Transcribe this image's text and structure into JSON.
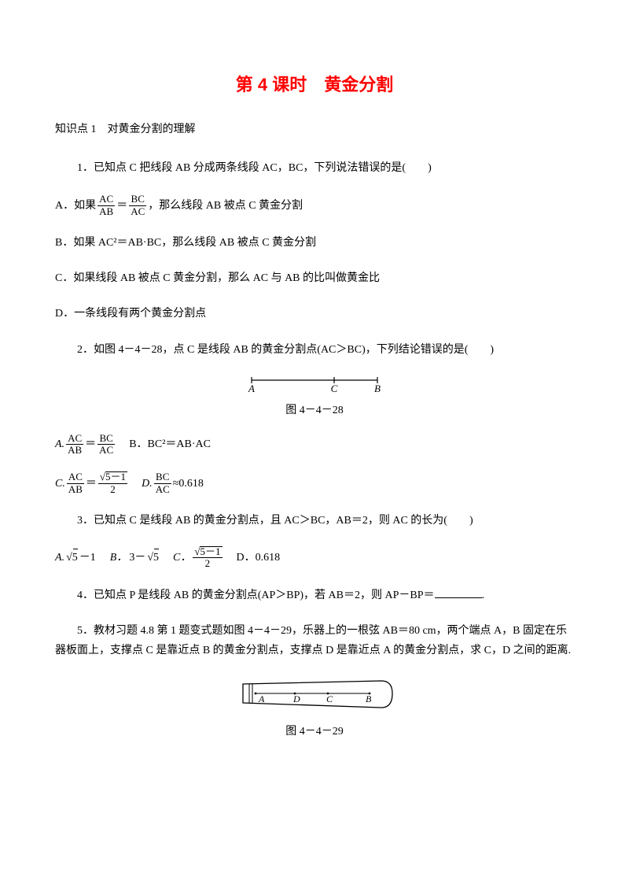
{
  "title": "第 4 课时　黄金分割",
  "section1": "知识点 1　对黄金分割的理解",
  "q1": {
    "stem": "1．已知点 C 把线段 AB 分成两条线段 AC，BC，下列说法错误的是(　　)",
    "optA_prefix": "A．如果",
    "optA_suffix": "，那么线段 AB 被点 C 黄金分割",
    "fracA1_num": "AC",
    "fracA1_den": "AB",
    "fracA2_num": "BC",
    "fracA2_den": "AC",
    "optB": "B．如果 AC²＝AB·BC，那么线段 AB 被点 C 黄金分割",
    "optC": "C．如果线段 AB 被点 C 黄金分割，那么 AC 与 AB 的比叫做黄金比",
    "optD": "D．一条线段有两个黄金分割点"
  },
  "q2": {
    "stem": "2．如图 4－4－28，点 C 是线段 AB 的黄金分割点(AC＞BC)，下列结论错误的是(　　)",
    "fig_caption": "图 4－4－28",
    "fig_labels": {
      "A": "A",
      "C": "C",
      "B": "B"
    },
    "optA_prefix": "A.",
    "fracA1_num": "AC",
    "fracA1_den": "AB",
    "fracA2_num": "BC",
    "fracA2_den": "AC",
    "optB": "B．BC²＝AB·AC",
    "optC_prefix": "C.",
    "fracC1_num": "AC",
    "fracC1_den": "AB",
    "fracC2_num": "√5－1",
    "fracC2_den": "2",
    "optD_prefix": "D.",
    "fracD_num": "BC",
    "fracD_den": "AC",
    "optD_suffix": "≈0.618"
  },
  "q3": {
    "stem": "3．已知点 C 是线段 AB 的黄金分割点，且 AC＞BC，AB＝2，则 AC 的长为(　　)",
    "optA": "A. √5－1",
    "optB": "B．3－√5",
    "optC_prefix": "C．",
    "fracC_num": "√5－1",
    "fracC_den": "2",
    "optD": "D．0.618"
  },
  "q4": {
    "stem_pre": "4．已知点 P 是线段 AB 的黄金分割点(AP＞BP)，若 AB＝2，则 AP－BP＝",
    "stem_post": "."
  },
  "q5": {
    "stem": "5．教材习题 4.8 第 1 题变式题如图 4－4－29，乐器上的一根弦 AB＝80 cm，两个端点 A，B 固定在乐器板面上，支撑点 C 是靠近点 B 的黄金分割点，支撑点 D 是靠近点 A 的黄金分割点，求 C，D 之间的距离.",
    "fig_caption": "图 4－4－29",
    "fig_labels": {
      "A": "A",
      "D": "D",
      "C": "C",
      "B": "B"
    }
  },
  "symbols": {
    "eq": "＝"
  },
  "colors": {
    "title": "#ff0000",
    "text": "#000000",
    "bg": "#ffffff"
  }
}
